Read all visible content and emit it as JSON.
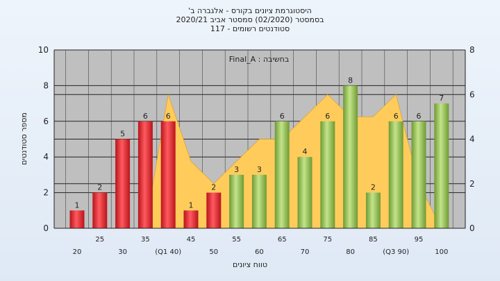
{
  "chart_data": {
    "type": "bar",
    "title_lines": [
      "היסטוגרמת ציונים בקורס - אלגברה ב'",
      "בסמסטר  (02/2020)  סמסטר אביב 2020/21",
      "סטודנטים רשומים - 117"
    ],
    "annotation": "Final_A : בחשיבה",
    "xlabel": "טווח ציונים",
    "ylabel": "מספר סטודנטים",
    "ylim": [
      0,
      10
    ],
    "y2lim": [
      0,
      8
    ],
    "yticks": [
      0,
      2,
      4,
      6,
      8,
      10
    ],
    "y2ticks": [
      0,
      2,
      4,
      6,
      8
    ],
    "categories": [
      "20",
      "25",
      "30",
      "35",
      "(Q1 40)",
      "45",
      "50",
      "55",
      "60",
      "65",
      "70",
      "75",
      "80",
      "85",
      "(Q3 90)",
      "95",
      "100"
    ],
    "values": [
      1,
      2,
      5,
      6,
      6,
      1,
      2,
      3,
      3,
      6,
      4,
      6,
      8,
      2,
      6,
      6,
      7
    ],
    "bar_groups": [
      "red",
      "red",
      "red",
      "red",
      "red",
      "red",
      "red",
      "green",
      "green",
      "green",
      "green",
      "green",
      "green",
      "green",
      "green",
      "green",
      "green"
    ],
    "background_area": {
      "description_series": "distribution area (secondary axis)",
      "values": [
        0,
        0,
        0,
        0,
        6,
        3,
        2,
        3,
        4,
        4,
        5,
        6,
        5,
        5,
        6,
        2,
        0
      ]
    },
    "grid": true,
    "colors": {
      "red_bar": "#e0232b",
      "green_bar": "#8ec04a",
      "area": "#ffcc5c",
      "plot_bg": "#bfbfbf"
    }
  }
}
